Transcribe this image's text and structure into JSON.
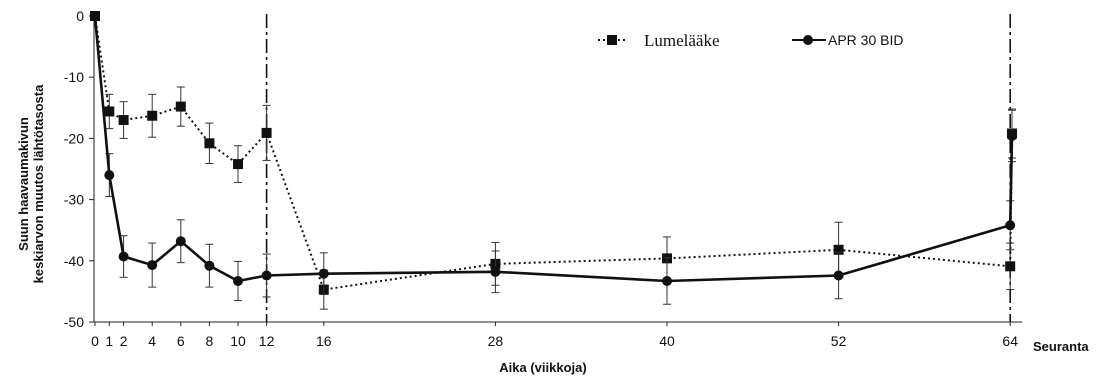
{
  "chart_data": {
    "type": "line",
    "title": "",
    "xlabel": "Aika (viikkoja)",
    "ylabel_lines": [
      "Suun haavaumakivun",
      "keskiarvon muutos lähtötasosta"
    ],
    "ylim": [
      -50,
      0
    ],
    "y_ticks": [
      0,
      -10,
      -20,
      -30,
      -40,
      -50
    ],
    "y_tick_labels": [
      "0",
      "-10",
      "-20",
      "-30",
      "-40",
      "-50"
    ],
    "x_ticks": [
      0,
      1,
      2,
      4,
      6,
      8,
      10,
      12,
      16,
      28,
      40,
      52,
      64
    ],
    "x_tick_labels": [
      "0",
      "1",
      "2",
      "4",
      "6",
      "8",
      "10",
      "12",
      "16",
      "28",
      "40",
      "52",
      "64"
    ],
    "x_extra_label": "Seuranta",
    "vertical_dashed_lines_at": [
      12,
      64
    ],
    "grid": false,
    "legend_position": "top-right",
    "series": [
      {
        "name": "Lumelääke",
        "style": "dotted",
        "marker": "square",
        "color": "#111111",
        "x": [
          0,
          1,
          2,
          4,
          6,
          8,
          10,
          12,
          16,
          28,
          40,
          52,
          64,
          "Seuranta"
        ],
        "y": [
          0,
          -15.6,
          -17.0,
          -16.3,
          -14.8,
          -20.8,
          -24.2,
          -19.1,
          -44.7,
          -40.5,
          -39.6,
          -38.2,
          -40.9,
          -19.2
        ],
        "err": [
          0,
          2.8,
          3.0,
          3.5,
          3.2,
          3.3,
          3.0,
          4.5,
          3.2,
          3.5,
          3.5,
          4.5,
          3.8,
          4.0
        ]
      },
      {
        "name": "APR 30 BID",
        "style": "solid",
        "marker": "circle",
        "color": "#111111",
        "x": [
          0,
          1,
          2,
          4,
          6,
          8,
          10,
          12,
          16,
          28,
          40,
          52,
          64,
          "Seuranta"
        ],
        "y": [
          0,
          -26.0,
          -39.3,
          -40.7,
          -36.8,
          -40.8,
          -43.3,
          -42.4,
          -42.1,
          -41.8,
          -43.3,
          -42.4,
          -34.2,
          -19.6
        ],
        "err": [
          0,
          3.5,
          3.4,
          3.6,
          3.5,
          3.5,
          3.2,
          3.5,
          3.4,
          3.4,
          3.8,
          3.8,
          4.0,
          4.2
        ]
      }
    ]
  }
}
